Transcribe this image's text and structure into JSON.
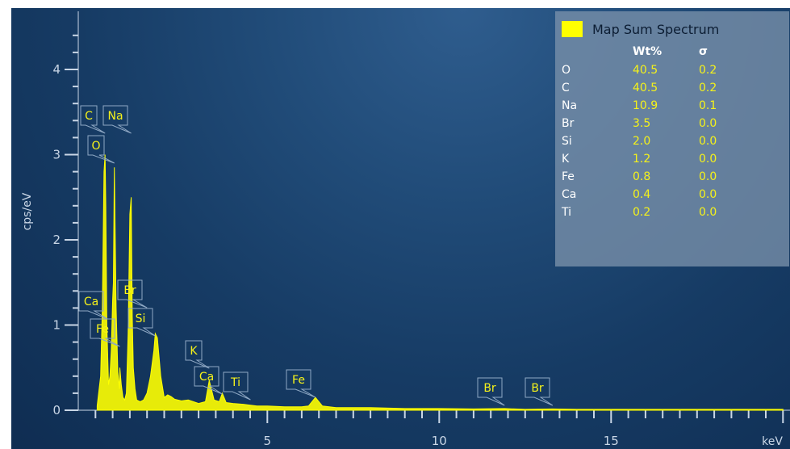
{
  "chart_data": {
    "type": "line",
    "xlabel": "keV",
    "ylabel": "cps/eV",
    "xlim": [
      -0.5,
      20.5
    ],
    "ylim": [
      0,
      4.55
    ],
    "x_ticks": [
      5,
      10,
      15
    ],
    "y_ticks": [
      0,
      1,
      2,
      3,
      4
    ],
    "series": [
      {
        "name": "Map Sum Spectrum",
        "color": "#ffff00",
        "x": [
          0.05,
          0.15,
          0.2,
          0.25,
          0.28,
          0.3,
          0.33,
          0.38,
          0.42,
          0.46,
          0.5,
          0.52,
          0.55,
          0.6,
          0.65,
          0.7,
          0.71,
          0.75,
          0.8,
          0.85,
          0.9,
          0.95,
          1.0,
          1.04,
          1.07,
          1.1,
          1.15,
          1.2,
          1.3,
          1.4,
          1.5,
          1.6,
          1.7,
          1.74,
          1.8,
          1.9,
          2.0,
          2.1,
          2.2,
          2.3,
          2.5,
          2.7,
          3.0,
          3.2,
          3.31,
          3.45,
          3.6,
          3.69,
          3.8,
          4.0,
          4.3,
          4.51,
          4.7,
          5.0,
          5.5,
          6.0,
          6.2,
          6.4,
          6.6,
          7.0,
          8.0,
          9.0,
          10.0,
          11.0,
          11.9,
          12.5,
          13.3,
          14.0,
          15.0,
          17.0,
          20.0
        ],
        "values": [
          0.05,
          0.4,
          1.2,
          2.8,
          3.0,
          2.4,
          1.0,
          0.3,
          0.4,
          0.7,
          1.3,
          1.5,
          2.85,
          1.2,
          0.45,
          0.25,
          0.5,
          0.3,
          0.15,
          0.12,
          0.2,
          0.9,
          2.3,
          2.5,
          1.1,
          0.5,
          0.25,
          0.12,
          0.1,
          0.12,
          0.2,
          0.4,
          0.7,
          0.9,
          0.85,
          0.4,
          0.15,
          0.18,
          0.16,
          0.13,
          0.11,
          0.12,
          0.08,
          0.1,
          0.35,
          0.12,
          0.1,
          0.2,
          0.09,
          0.08,
          0.07,
          0.06,
          0.05,
          0.05,
          0.04,
          0.04,
          0.05,
          0.15,
          0.05,
          0.03,
          0.03,
          0.02,
          0.02,
          0.015,
          0.02,
          0.01,
          0.015,
          0.01,
          0.01,
          0.01,
          0.01
        ]
      }
    ],
    "peak_labels": [
      {
        "text": "C",
        "x": 0.28
      },
      {
        "text": "Na",
        "x": 1.04
      },
      {
        "text": "O",
        "x": 0.55
      },
      {
        "text": "Ca",
        "x": 0.35
      },
      {
        "text": "Fe",
        "x": 0.71
      },
      {
        "text": "Br",
        "x": 1.5
      },
      {
        "text": "Si",
        "x": 1.74
      },
      {
        "text": "K",
        "x": 3.31
      },
      {
        "text": "Ca",
        "x": 3.69
      },
      {
        "text": "Ti",
        "x": 4.51
      },
      {
        "text": "Fe",
        "x": 6.4
      },
      {
        "text": "Br",
        "x": 11.9
      },
      {
        "text": "Br",
        "x": 13.3
      }
    ],
    "legend": {
      "title": "Map Sum Spectrum",
      "col_wt": "Wt%",
      "col_sigma": "σ",
      "rows": [
        {
          "element": "O",
          "wt": "40.5",
          "sigma": "0.2"
        },
        {
          "element": "C",
          "wt": "40.5",
          "sigma": "0.2"
        },
        {
          "element": "Na",
          "wt": "10.9",
          "sigma": "0.1"
        },
        {
          "element": "Br",
          "wt": "3.5",
          "sigma": "0.0"
        },
        {
          "element": "Si",
          "wt": "2.0",
          "sigma": "0.0"
        },
        {
          "element": "K",
          "wt": "1.2",
          "sigma": "0.0"
        },
        {
          "element": "Fe",
          "wt": "0.8",
          "sigma": "0.0"
        },
        {
          "element": "Ca",
          "wt": "0.4",
          "sigma": "0.0"
        },
        {
          "element": "Ti",
          "wt": "0.2",
          "sigma": "0.0"
        }
      ]
    }
  }
}
